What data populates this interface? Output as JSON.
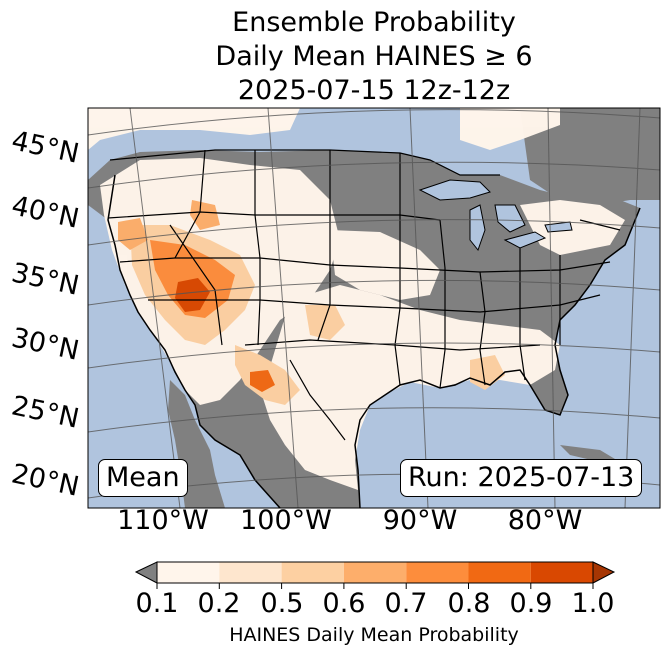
{
  "title": {
    "line1": "Ensemble Probability",
    "line2": "Daily Mean HAINES ≥ 6",
    "line3": "2025-07-15 12z-12z"
  },
  "map": {
    "lat_labels": [
      "45°N",
      "40°N",
      "35°N",
      "30°N",
      "25°N",
      "20°N"
    ],
    "lon_labels": [
      "110°W",
      "100°W",
      "90°W",
      "80°W"
    ],
    "mean_label": "Mean",
    "run_label": "Run: 2025-07-13"
  },
  "colors": {
    "ocean": "#b0c4de",
    "no_data": "#808080",
    "bins": [
      "#fff5eb",
      "#fee6ce",
      "#fdd0a2",
      "#fdae6b",
      "#fd8d3c",
      "#f16913",
      "#d94801"
    ],
    "under": "#808080",
    "over": "#a63603"
  },
  "colorbar": {
    "ticks": [
      "0.1",
      "0.2",
      "0.5",
      "0.6",
      "0.7",
      "0.8",
      "0.9",
      "1.0"
    ],
    "label": "HAINES Daily Mean Probability"
  }
}
